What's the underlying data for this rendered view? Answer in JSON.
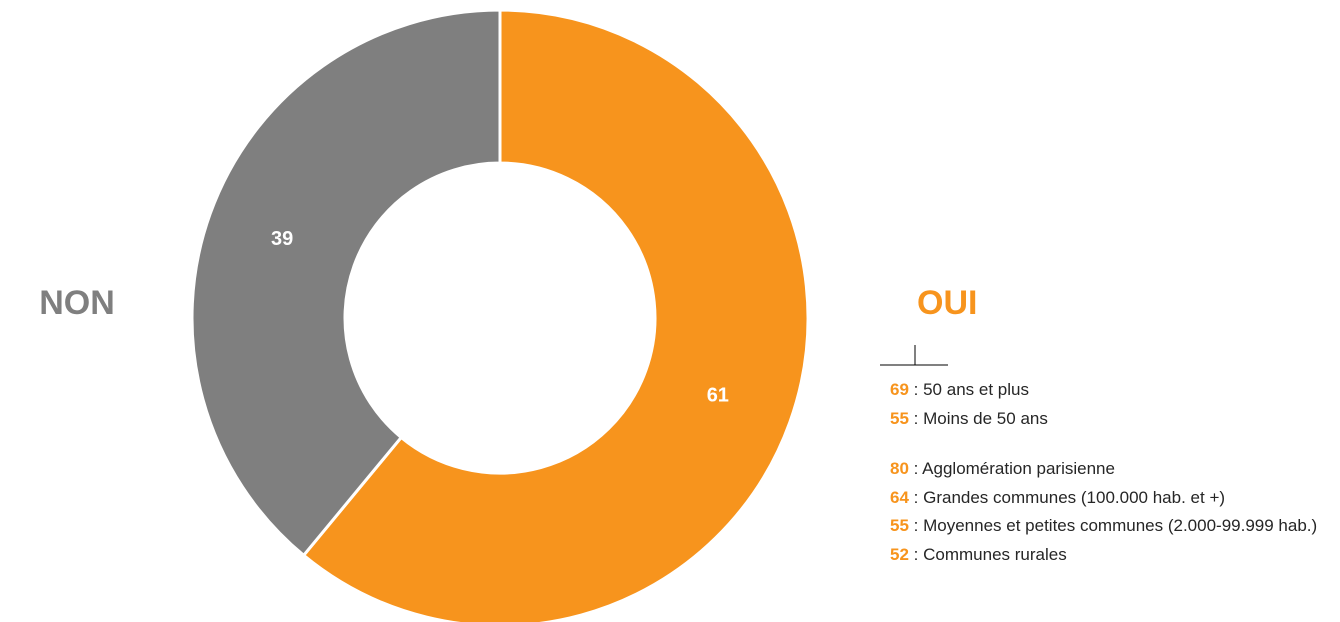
{
  "chart_data": {
    "type": "donut",
    "categories": [
      "OUI",
      "NON"
    ],
    "values": [
      61,
      39
    ],
    "colors": [
      "#F7941D",
      "#7F7F7F"
    ],
    "breakdown": [
      [
        {
          "value": 69,
          "label": ": 50 ans et plus"
        },
        {
          "value": 55,
          "label": ": Moins de 50 ans"
        }
      ],
      [
        {
          "value": 80,
          "label": ": Agglomération parisienne"
        },
        {
          "value": 64,
          "label": ": Grandes communes (100.000 hab. et +)"
        },
        {
          "value": 55,
          "label": ": Moyennes et petites communes (2.000-99.999 hab.)"
        },
        {
          "value": 52,
          "label": ": Communes rurales"
        }
      ]
    ]
  }
}
